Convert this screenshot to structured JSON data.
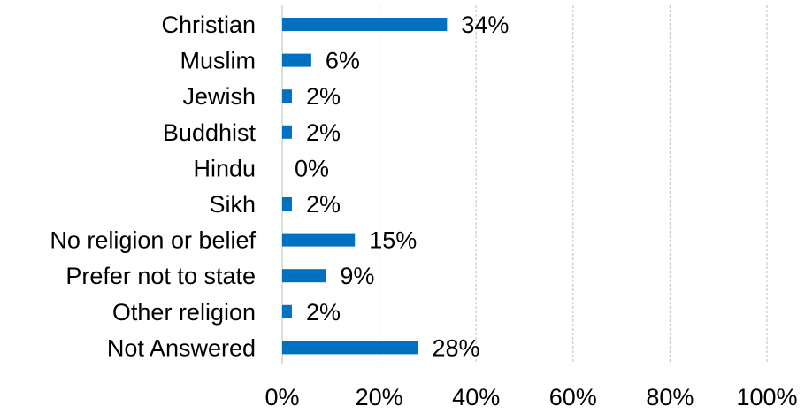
{
  "chart_data": {
    "type": "bar",
    "orientation": "horizontal",
    "categories": [
      "Christian",
      "Muslim",
      "Jewish",
      "Buddhist",
      "Hindu",
      "Sikh",
      "No religion or belief",
      "Prefer not to state",
      "Other religion",
      "Not Answered"
    ],
    "values": [
      34,
      6,
      2,
      2,
      0,
      2,
      15,
      9,
      2,
      28
    ],
    "data_labels": [
      "34%",
      "6%",
      "2%",
      "2%",
      "0%",
      "2%",
      "15%",
      "9%",
      "2%",
      "28%"
    ],
    "xlim": [
      0,
      100
    ],
    "x_ticks": [
      0,
      20,
      40,
      60,
      80,
      100
    ],
    "x_tick_labels": [
      "0%",
      "20%",
      "40%",
      "60%",
      "80%",
      "100%"
    ],
    "grid": "vertical",
    "bar_color": "#0070c0",
    "title": "",
    "xlabel": "",
    "ylabel": ""
  }
}
